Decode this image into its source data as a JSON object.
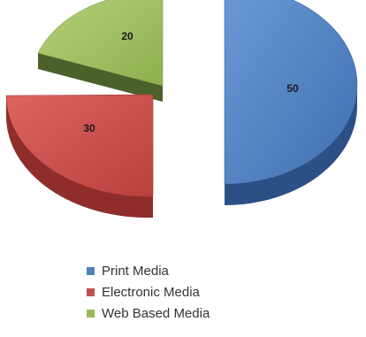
{
  "chart_data": {
    "type": "pie",
    "title": "",
    "categories": [
      "Print Media",
      "Electronic Media",
      "Web Based Media"
    ],
    "values": [
      50,
      30,
      20
    ],
    "data_labels": [
      "50",
      "30",
      "20"
    ],
    "colors": [
      "#4f81bd",
      "#c0504d",
      "#9bbb59"
    ],
    "style": "3d-exploded",
    "legend_position": "bottom"
  }
}
